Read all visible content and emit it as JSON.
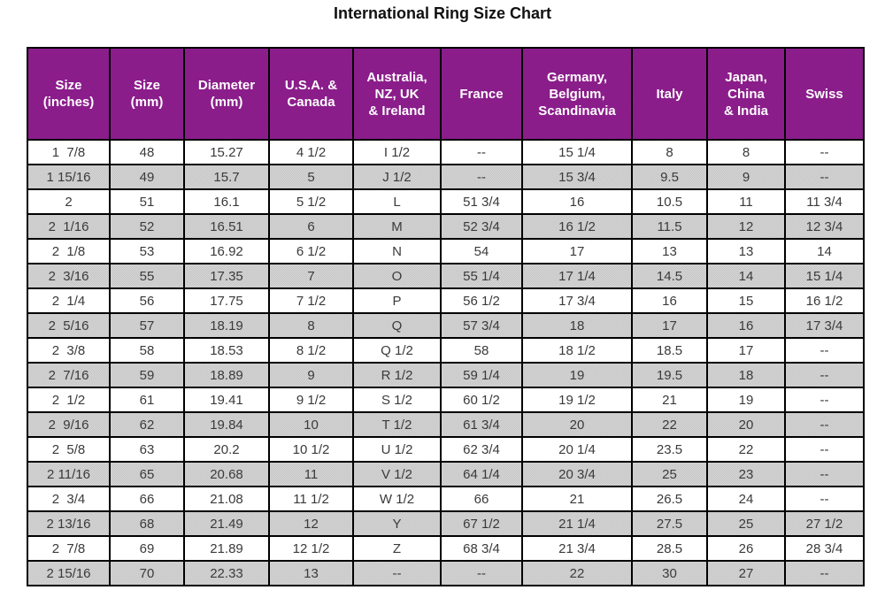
{
  "title": "International Ring Size Chart",
  "colors": {
    "header_bg": "#8b158b",
    "header_text": "#ffffff",
    "alt_row_bg": "#c9c9c9",
    "cell_text": "#3a3a3a",
    "border": "#000000"
  },
  "chart_data": {
    "type": "table",
    "title": "International Ring Size Chart",
    "columns": [
      "Size\n(inches)",
      "Size\n(mm)",
      "Diameter\n(mm)",
      "U.S.A. &\nCanada",
      "Australia,\nNZ, UK\n& Ireland",
      "France",
      "Germany,\nBelgium,\nScandinavia",
      "Italy",
      "Japan,\nChina\n& India",
      "Swiss"
    ],
    "rows": [
      [
        "1  7/8",
        "48",
        "15.27",
        "4 1/2",
        "I 1/2",
        "--",
        "15 1/4",
        "8",
        "8",
        "--"
      ],
      [
        "1 15/16",
        "49",
        "15.7",
        "5",
        "J 1/2",
        "--",
        "15 3/4",
        "9.5",
        "9",
        "--"
      ],
      [
        "2",
        "51",
        "16.1",
        "5 1/2",
        "L",
        "51 3/4",
        "16",
        "10.5",
        "11",
        "11 3/4"
      ],
      [
        "2  1/16",
        "52",
        "16.51",
        "6",
        "M",
        "52 3/4",
        "16 1/2",
        "11.5",
        "12",
        "12 3/4"
      ],
      [
        "2  1/8",
        "53",
        "16.92",
        "6 1/2",
        "N",
        "54",
        "17",
        "13",
        "13",
        "14"
      ],
      [
        "2  3/16",
        "55",
        "17.35",
        "7",
        "O",
        "55 1/4",
        "17 1/4",
        "14.5",
        "14",
        "15 1/4"
      ],
      [
        "2  1/4",
        "56",
        "17.75",
        "7 1/2",
        "P",
        "56 1/2",
        "17 3/4",
        "16",
        "15",
        "16 1/2"
      ],
      [
        "2  5/16",
        "57",
        "18.19",
        "8",
        "Q",
        "57 3/4",
        "18",
        "17",
        "16",
        "17 3/4"
      ],
      [
        "2  3/8",
        "58",
        "18.53",
        "8 1/2",
        "Q 1/2",
        "58",
        "18 1/2",
        "18.5",
        "17",
        "--"
      ],
      [
        "2  7/16",
        "59",
        "18.89",
        "9",
        "R 1/2",
        "59 1/4",
        "19",
        "19.5",
        "18",
        "--"
      ],
      [
        "2  1/2",
        "61",
        "19.41",
        "9 1/2",
        "S 1/2",
        "60 1/2",
        "19 1/2",
        "21",
        "19",
        "--"
      ],
      [
        "2  9/16",
        "62",
        "19.84",
        "10",
        "T 1/2",
        "61 3/4",
        "20",
        "22",
        "20",
        "--"
      ],
      [
        "2  5/8",
        "63",
        "20.2",
        "10 1/2",
        "U 1/2",
        "62 3/4",
        "20 1/4",
        "23.5",
        "22",
        "--"
      ],
      [
        "2 11/16",
        "65",
        "20.68",
        "11",
        "V 1/2",
        "64 1/4",
        "20 3/4",
        "25",
        "23",
        "--"
      ],
      [
        "2  3/4",
        "66",
        "21.08",
        "11 1/2",
        "W 1/2",
        "66",
        "21",
        "26.5",
        "24",
        "--"
      ],
      [
        "2 13/16",
        "68",
        "21.49",
        "12",
        "Y",
        "67 1/2",
        "21 1/4",
        "27.5",
        "25",
        "27 1/2"
      ],
      [
        "2  7/8",
        "69",
        "21.89",
        "12 1/2",
        "Z",
        "68 3/4",
        "21 3/4",
        "28.5",
        "26",
        "28 3/4"
      ],
      [
        "2 15/16",
        "70",
        "22.33",
        "13",
        "--",
        "--",
        "22",
        "30",
        "27",
        "--"
      ]
    ]
  }
}
